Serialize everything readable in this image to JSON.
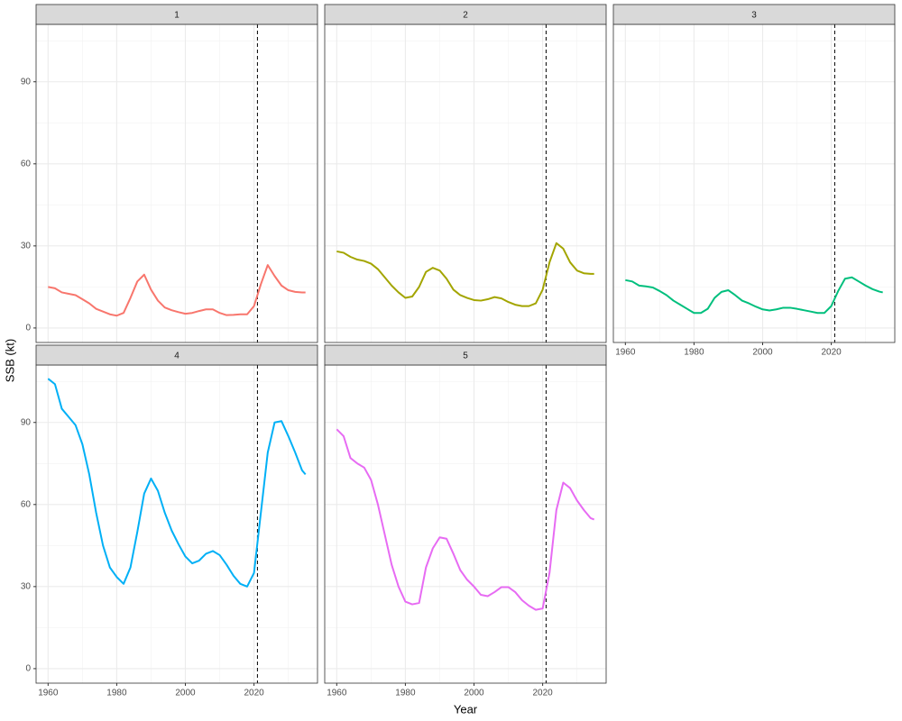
{
  "axis_labels": {
    "x": "Year",
    "y": "SSB (kt)"
  },
  "chart_data": [
    {
      "type": "line",
      "title": "1",
      "color": "#F8766D",
      "vline": 2021,
      "x": [
        1960,
        1962,
        1964,
        1966,
        1968,
        1970,
        1972,
        1974,
        1976,
        1978,
        1980,
        1982,
        1984,
        1986,
        1988,
        1990,
        1992,
        1994,
        1996,
        1998,
        2000,
        2002,
        2004,
        2006,
        2008,
        2010,
        2012,
        2014,
        2016,
        2018,
        2020,
        2022,
        2024,
        2026,
        2028,
        2030,
        2032,
        2034,
        2035
      ],
      "values": [
        15,
        14.5,
        13,
        12.5,
        12,
        10.5,
        9,
        7,
        6,
        5,
        4.5,
        5.5,
        11,
        17,
        19.5,
        14,
        10,
        7.5,
        6.5,
        5.8,
        5.2,
        5.5,
        6.2,
        6.8,
        6.8,
        5.5,
        4.7,
        4.8,
        5,
        5,
        8,
        16,
        23,
        19,
        15.5,
        13.8,
        13.2,
        13,
        13
      ],
      "xlim": [
        1956.5,
        2038.5
      ],
      "ylim": [
        -5.3,
        111
      ],
      "xticks": [
        1960,
        1980,
        2000,
        2020
      ],
      "yticks": [
        0,
        30,
        60,
        90
      ],
      "grid": true
    },
    {
      "type": "line",
      "title": "2",
      "color": "#A3A500",
      "vline": 2021,
      "x": [
        1960,
        1962,
        1964,
        1966,
        1968,
        1970,
        1972,
        1974,
        1976,
        1978,
        1980,
        1982,
        1984,
        1986,
        1988,
        1990,
        1992,
        1994,
        1996,
        1998,
        2000,
        2002,
        2004,
        2006,
        2008,
        2010,
        2012,
        2014,
        2016,
        2018,
        2020,
        2022,
        2024,
        2026,
        2028,
        2030,
        2032,
        2034,
        2035
      ],
      "values": [
        28,
        27.5,
        26,
        25,
        24.5,
        23.5,
        21.5,
        18.5,
        15.5,
        13,
        11,
        11.5,
        15,
        20.5,
        22,
        21,
        18,
        14,
        12,
        11,
        10.2,
        10,
        10.5,
        11.3,
        10.8,
        9.5,
        8.5,
        8,
        8,
        9,
        14,
        24,
        31,
        29,
        24,
        21,
        20,
        19.8,
        19.8
      ],
      "xlim": [
        1956.5,
        2038.5
      ],
      "ylim": [
        -5.3,
        111
      ],
      "xticks": [
        1960,
        1980,
        2000,
        2020
      ],
      "yticks": [
        0,
        30,
        60,
        90
      ],
      "grid": true
    },
    {
      "type": "line",
      "title": "3",
      "color": "#00BF7D",
      "vline": 2021,
      "x": [
        1960,
        1962,
        1964,
        1966,
        1968,
        1970,
        1972,
        1974,
        1976,
        1978,
        1980,
        1982,
        1984,
        1986,
        1988,
        1990,
        1992,
        1994,
        1996,
        1998,
        2000,
        2002,
        2004,
        2006,
        2008,
        2010,
        2012,
        2014,
        2016,
        2018,
        2020,
        2022,
        2024,
        2026,
        2028,
        2030,
        2032,
        2034,
        2035
      ],
      "values": [
        17.5,
        17,
        15.5,
        15.2,
        14.8,
        13.5,
        12,
        10,
        8.5,
        7,
        5.5,
        5.5,
        7,
        11,
        13.2,
        13.8,
        12,
        10,
        9,
        7.8,
        6.8,
        6.4,
        6.8,
        7.4,
        7.4,
        7,
        6.5,
        6,
        5.5,
        5.5,
        8,
        13.5,
        18,
        18.5,
        17,
        15.5,
        14.2,
        13.3,
        13
      ],
      "xlim": [
        1956.5,
        2038.5
      ],
      "ylim": [
        -5.3,
        111
      ],
      "xticks": [
        1960,
        1980,
        2000,
        2020
      ],
      "yticks": [
        0,
        30,
        60,
        90
      ],
      "grid": true
    },
    {
      "type": "line",
      "title": "4",
      "color": "#00B0F6",
      "vline": 2021,
      "x": [
        1960,
        1962,
        1964,
        1966,
        1968,
        1970,
        1972,
        1974,
        1976,
        1978,
        1980,
        1982,
        1984,
        1986,
        1988,
        1990,
        1992,
        1994,
        1996,
        1998,
        2000,
        2002,
        2004,
        2006,
        2008,
        2010,
        2012,
        2014,
        2016,
        2018,
        2020,
        2022,
        2024,
        2026,
        2028,
        2030,
        2032,
        2034,
        2035
      ],
      "values": [
        106,
        104,
        95,
        92,
        89,
        82,
        71,
        57,
        45,
        37,
        33.5,
        31,
        37,
        50,
        64,
        69.5,
        65,
        57,
        50.5,
        45.5,
        41,
        38.5,
        39.5,
        42,
        43,
        41.5,
        38,
        34,
        31,
        30,
        35,
        57,
        79,
        90,
        90.5,
        85,
        79,
        72.5,
        71
      ],
      "xlim": [
        1956.5,
        2038.5
      ],
      "ylim": [
        -5.3,
        111
      ],
      "xticks": [
        1960,
        1980,
        2000,
        2020
      ],
      "yticks": [
        0,
        30,
        60,
        90
      ],
      "grid": true
    },
    {
      "type": "line",
      "title": "5",
      "color": "#E76BF3",
      "vline": 2021,
      "x": [
        1960,
        1962,
        1964,
        1966,
        1968,
        1970,
        1972,
        1974,
        1976,
        1978,
        1980,
        1982,
        1984,
        1986,
        1988,
        1990,
        1992,
        1994,
        1996,
        1998,
        2000,
        2002,
        2004,
        2006,
        2008,
        2010,
        2012,
        2014,
        2016,
        2018,
        2020,
        2022,
        2024,
        2026,
        2028,
        2030,
        2032,
        2034,
        2035
      ],
      "values": [
        87.5,
        85,
        77,
        75,
        73.5,
        69,
        60,
        49,
        38,
        30,
        24.5,
        23.5,
        24,
        37,
        44,
        48,
        47.5,
        42,
        36,
        32.5,
        30,
        27,
        26.5,
        28,
        29.8,
        29.8,
        28,
        25,
        23,
        21.5,
        22,
        35,
        58,
        68,
        66,
        61.5,
        58,
        55,
        54.5
      ],
      "xlim": [
        1956.5,
        2038.5
      ],
      "ylim": [
        -5.3,
        111
      ],
      "xticks": [
        1960,
        1980,
        2000,
        2020
      ],
      "yticks": [
        0,
        30,
        60,
        90
      ],
      "grid": true
    }
  ]
}
